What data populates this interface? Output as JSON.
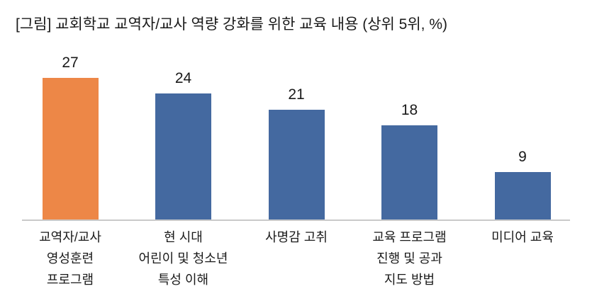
{
  "header": {
    "title": "[그림] 교회학교 교역자/교사 역량 강화를 위한 교육 내용 (상위 5위, %)"
  },
  "colors": {
    "highlight_bar": "#ED8747",
    "default_bar": "#4469A0",
    "axis_line": "#C9C9C9",
    "text": "#1A1A1A"
  },
  "chart_data": {
    "type": "bar",
    "title": "[그림] 교회학교 교역자/교사 역량 강화를 위한 교육 내용 (상위 5위, %)",
    "categories": [
      "교역자/교사\n영성훈련\n프로그램",
      "현 시대\n어린이 및 청소년\n특성 이해",
      "사명감 고취",
      "교육 프로그램\n진행 및 공과\n지도 방법",
      "미디어 교육"
    ],
    "values": [
      27,
      24,
      21,
      18,
      9
    ],
    "data_labels": [
      "27",
      "24",
      "21",
      "18",
      "9"
    ],
    "bar_colors": [
      "#ED8747",
      "#4469A0",
      "#4469A0",
      "#4469A0",
      "#4469A0"
    ],
    "highlight_index": 0,
    "xlabel": "",
    "ylabel": "",
    "ylim": [
      0,
      30
    ],
    "grid": false,
    "legend": "none",
    "value_axis_visible": false
  }
}
